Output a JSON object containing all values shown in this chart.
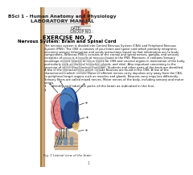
{
  "title_line1": "BSci 1 - Human Anatomy and Physiology",
  "title_line2": "LABORATORY MANUAL",
  "date_label": "DATE:",
  "group_label": "GROUP NO.:",
  "exercise_header": "EXERCISE NO. 7",
  "exercise_subheader": "Nervous System: Brain and Spinal Cord",
  "body_lines": [
    "The nervous system is divided into Central Nervous System (CNS) and Peripheral Nervous",
    "System (PNS). The CNS is consists of your brain and spinal cord which primarily integrates",
    "incoming sensory information and sends instructions based on that information out to body",
    "components. Whereas PNS is consists of the cranial and spinal nerves, ganglia, and sensory",
    "receptors of sense is it bundle of neurons found in the PNS. Moreover, it contains Sensory",
    "neurologic nerves related to nerve tracts for CNS and visceral organs in innervation of the body,",
    "particularly such as skeletal (muscles, glands, and skin). Also important concerning to the",
    "structure of which they function (function). Students and other parts of the brain are identified.",
    "A few of the characteristics which include Neurons are found in the CNS. A few of the",
    "characteristics which include Motor or efferent nerves carry impulses only away from the CNS,",
    "to peripheral target organs such as muscles and glands. Neurons carry impulses differently -",
    "Sensory fibers are called mixed nerves. Motor nerves of the body, including sensory and motor",
    "nerves."
  ],
  "instruction_text": "1.    Identify and label the parts of the brain as indicated in the line.",
  "fig_caption": "Fig. 1 Lateral view of the brain",
  "bg_color": "#ffffff",
  "text_color": "#000000",
  "page_number": "1",
  "left_fold_color": "#c8a070",
  "left_fold_shadow": "#a07840",
  "header_bg_color": "#eeeeee",
  "icon_bg_color": "#e8ddd0",
  "brain_pink": "#e88888",
  "brain_pink_dark": "#d06868",
  "brain_blue_dark": "#1a3a80",
  "brain_blue_mid": "#2a5090",
  "brain_blue_light": "#4a80c0",
  "brain_tan": "#c8a060",
  "brain_tan_light": "#dfc080",
  "skin_color": "#d4b896",
  "skin_dark": "#c09060",
  "skin_blue": "#7090b0",
  "nerve_pink": "#c86060",
  "pdf_color": "#cccccc"
}
